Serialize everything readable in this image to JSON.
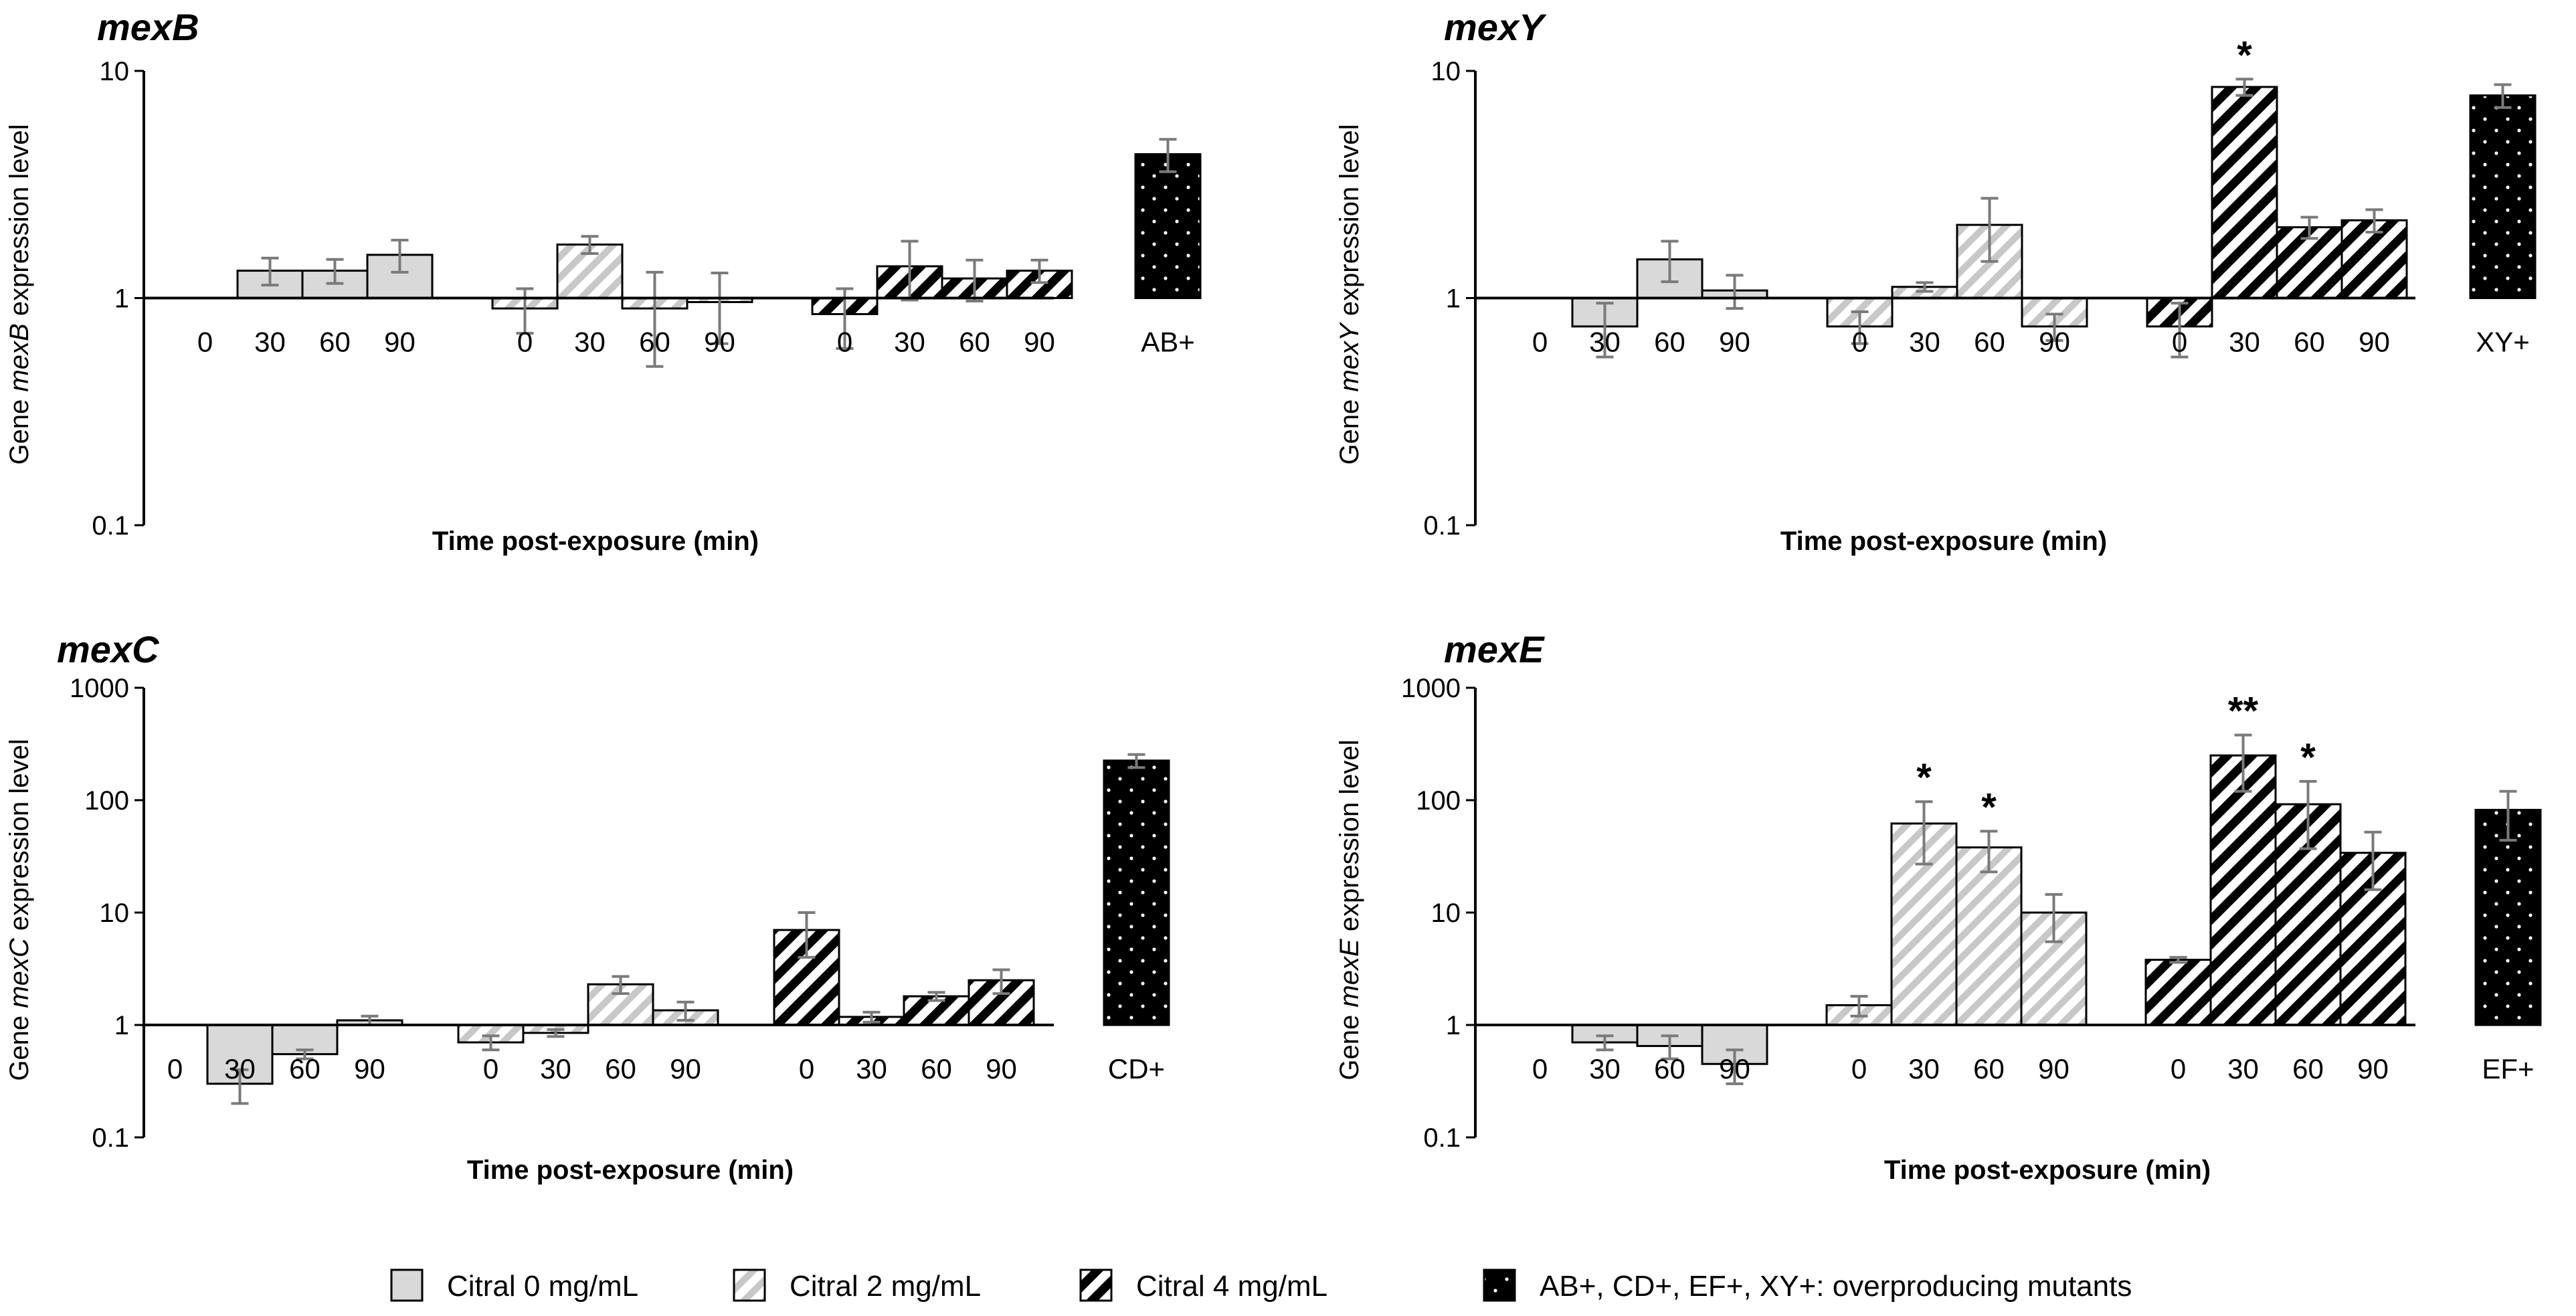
{
  "chart_data": [
    {
      "id": "mexB",
      "type": "bar",
      "title": "mexB",
      "ylabel": {
        "prefix": "Gene ",
        "gene": "mexB",
        "suffix": " expression level"
      },
      "xlabel": "Time post-exposure (min)",
      "yscale": "log",
      "ylim": [
        0.1,
        10
      ],
      "yticks": [
        "0.1",
        "1",
        "10"
      ],
      "groups": [
        {
          "series": "Citral 0 mg/mL",
          "bars": [
            {
              "label": "0",
              "value": 1.0,
              "err": 0
            },
            {
              "label": "30",
              "value": 1.32,
              "err": 0.18
            },
            {
              "label": "60",
              "value": 1.32,
              "err": 0.16
            },
            {
              "label": "90",
              "value": 1.55,
              "err": 0.25
            }
          ]
        },
        {
          "series": "Citral 2 mg/mL",
          "bars": [
            {
              "label": "0",
              "value": 0.9,
              "err": 0.2
            },
            {
              "label": "30",
              "value": 1.72,
              "err": 0.15
            },
            {
              "label": "60",
              "value": 0.9,
              "err": 0.4
            },
            {
              "label": "90",
              "value": 0.96,
              "err": 0.33
            }
          ]
        },
        {
          "series": "Citral 4 mg/mL",
          "bars": [
            {
              "label": "0",
              "value": 0.85,
              "err": 0.25
            },
            {
              "label": "30",
              "value": 1.38,
              "err": 0.4
            },
            {
              "label": "60",
              "value": 1.22,
              "err": 0.25
            },
            {
              "label": "90",
              "value": 1.32,
              "err": 0.15
            }
          ]
        },
        {
          "series": "AB+, CD+, EF+, XY+: overproducing mutants",
          "bars": [
            {
              "label": "AB+",
              "value": 4.3,
              "err": 0.7
            }
          ]
        }
      ]
    },
    {
      "id": "mexY",
      "type": "bar",
      "title": "mexY",
      "ylabel": {
        "prefix": "Gene ",
        "gene": "mexY",
        "suffix": " expression level"
      },
      "xlabel": "Time post-exposure (min)",
      "yscale": "log",
      "ylim": [
        0.1,
        10
      ],
      "yticks": [
        "0.1",
        "1",
        "10"
      ],
      "groups": [
        {
          "series": "Citral 0 mg/mL",
          "bars": [
            {
              "label": "0",
              "value": 1.0,
              "err": 0
            },
            {
              "label": "30",
              "value": 0.75,
              "err": 0.2
            },
            {
              "label": "60",
              "value": 1.48,
              "err": 0.3
            },
            {
              "label": "90",
              "value": 1.08,
              "err": 0.18
            }
          ]
        },
        {
          "series": "Citral 2 mg/mL",
          "bars": [
            {
              "label": "0",
              "value": 0.75,
              "err": 0.12
            },
            {
              "label": "30",
              "value": 1.12,
              "err": 0.05
            },
            {
              "label": "60",
              "value": 2.1,
              "err": 0.65
            },
            {
              "label": "90",
              "value": 0.75,
              "err": 0.1
            }
          ]
        },
        {
          "series": "Citral 4 mg/mL",
          "bars": [
            {
              "label": "0",
              "value": 0.75,
              "err": 0.2
            },
            {
              "label": "30",
              "value": 8.5,
              "err": 0.7,
              "sig": "*"
            },
            {
              "label": "60",
              "value": 2.05,
              "err": 0.22
            },
            {
              "label": "90",
              "value": 2.2,
              "err": 0.25
            }
          ]
        },
        {
          "series": "AB+, CD+, EF+, XY+: overproducing mutants",
          "bars": [
            {
              "label": "XY+",
              "value": 7.8,
              "err": 0.9
            }
          ]
        }
      ]
    },
    {
      "id": "mexC",
      "type": "bar",
      "title": "mexC",
      "ylabel": {
        "prefix": "Gene ",
        "gene": "mexC",
        "suffix": " expression level"
      },
      "xlabel": "Time post-exposure (min)",
      "yscale": "log",
      "ylim": [
        0.1,
        1000
      ],
      "yticks": [
        "0.1",
        "1",
        "10",
        "100",
        "1000"
      ],
      "groups": [
        {
          "series": "Citral 0 mg/mL",
          "bars": [
            {
              "label": "0",
              "value": 1.0,
              "err": 0
            },
            {
              "label": "30",
              "value": 0.3,
              "err": 0.1
            },
            {
              "label": "60",
              "value": 0.55,
              "err": 0.05
            },
            {
              "label": "90",
              "value": 1.1,
              "err": 0.1
            }
          ]
        },
        {
          "series": "Citral 2 mg/mL",
          "bars": [
            {
              "label": "0",
              "value": 0.7,
              "err": 0.1
            },
            {
              "label": "30",
              "value": 0.85,
              "err": 0.06
            },
            {
              "label": "60",
              "value": 2.3,
              "err": 0.4
            },
            {
              "label": "90",
              "value": 1.35,
              "err": 0.25
            }
          ]
        },
        {
          "series": "Citral 4 mg/mL",
          "bars": [
            {
              "label": "0",
              "value": 7.0,
              "err": 3.0
            },
            {
              "label": "30",
              "value": 1.18,
              "err": 0.12
            },
            {
              "label": "60",
              "value": 1.8,
              "err": 0.15
            },
            {
              "label": "90",
              "value": 2.5,
              "err": 0.6
            }
          ]
        },
        {
          "series": "AB+, CD+, EF+, XY+: overproducing mutants",
          "bars": [
            {
              "label": "CD+",
              "value": 225,
              "err": 30
            }
          ]
        }
      ]
    },
    {
      "id": "mexE",
      "type": "bar",
      "title": "mexE",
      "ylabel": {
        "prefix": "Gene ",
        "gene": "mexE",
        "suffix": " expression level"
      },
      "xlabel": "Time post-exposure (min)",
      "yscale": "log",
      "ylim": [
        0.1,
        1000
      ],
      "yticks": [
        "0.1",
        "1",
        "10",
        "100",
        "1000"
      ],
      "groups": [
        {
          "series": "Citral 0 mg/mL",
          "bars": [
            {
              "label": "0",
              "value": 1.0,
              "err": 0
            },
            {
              "label": "30",
              "value": 0.7,
              "err": 0.1
            },
            {
              "label": "60",
              "value": 0.65,
              "err": 0.15
            },
            {
              "label": "90",
              "value": 0.45,
              "err": 0.15
            }
          ]
        },
        {
          "series": "Citral 2 mg/mL",
          "bars": [
            {
              "label": "0",
              "value": 1.5,
              "err": 0.3
            },
            {
              "label": "30",
              "value": 62,
              "err": 35,
              "sig": "*"
            },
            {
              "label": "60",
              "value": 38,
              "err": 15,
              "sig": "*"
            },
            {
              "label": "90",
              "value": 10,
              "err": 4.5
            }
          ]
        },
        {
          "series": "Citral 4 mg/mL",
          "bars": [
            {
              "label": "0",
              "value": 3.8,
              "err": 0.2
            },
            {
              "label": "30",
              "value": 250,
              "err": 130,
              "sig": "**"
            },
            {
              "label": "60",
              "value": 92,
              "err": 55,
              "sig": "*"
            },
            {
              "label": "90",
              "value": 34,
              "err": 18
            }
          ]
        },
        {
          "series": "AB+, CD+, EF+, XY+: overproducing mutants",
          "bars": [
            {
              "label": "EF+",
              "value": 82,
              "err": 38
            }
          ]
        }
      ]
    }
  ],
  "legend": [
    {
      "label": "Citral 0 mg/mL",
      "pattern": "solid-gray"
    },
    {
      "label": "Citral 2 mg/mL",
      "pattern": "light-hatch"
    },
    {
      "label": "Citral 4 mg/mL",
      "pattern": "dark-hatch"
    },
    {
      "label": "AB+, CD+, EF+, XY+: overproducing mutants",
      "pattern": "black-dots"
    }
  ],
  "colors": {
    "citral0_fill": "#d9d9d9",
    "citral2_stripe": "#c8c8c8",
    "citral4_stripe": "#000000",
    "mutant_fill": "#000000",
    "error_bar": "#7a7a7a"
  }
}
